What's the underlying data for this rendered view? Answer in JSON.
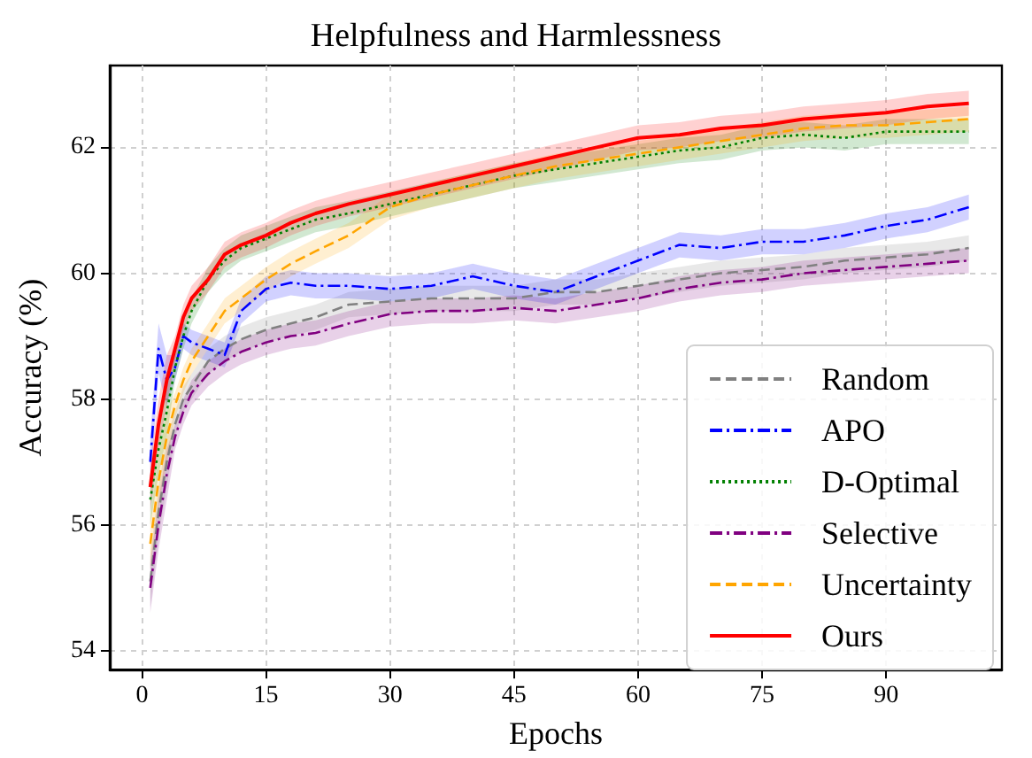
{
  "chart_data": {
    "type": "line",
    "title": "Helpfulness and Harmlessness",
    "xlabel": "Epochs",
    "ylabel": "Accuracy (%)",
    "x": [
      1,
      2,
      3,
      4,
      5,
      6,
      8,
      10,
      12,
      15,
      18,
      21,
      25,
      30,
      35,
      40,
      45,
      50,
      55,
      60,
      65,
      70,
      75,
      80,
      85,
      90,
      95,
      100
    ],
    "xlim": [
      -3.9,
      104
    ],
    "ylim": [
      53.7,
      63.3
    ],
    "xticks": [
      0,
      15,
      30,
      45,
      60,
      75,
      90
    ],
    "yticks": [
      54,
      56,
      58,
      60,
      62
    ],
    "grid": true,
    "legend": "bottom right",
    "marker": "none",
    "series": [
      {
        "name": "Random",
        "color": "#808080",
        "line_style": "dashed",
        "values": [
          55.1,
          56.2,
          57.0,
          57.6,
          58.0,
          58.2,
          58.6,
          58.8,
          58.95,
          59.1,
          59.2,
          59.3,
          59.5,
          59.55,
          59.6,
          59.6,
          59.6,
          59.7,
          59.7,
          59.8,
          59.9,
          60.0,
          60.05,
          60.1,
          60.2,
          60.25,
          60.3,
          60.4
        ],
        "lower": [
          54.7,
          55.8,
          56.6,
          57.4,
          57.8,
          58.0,
          58.4,
          58.6,
          58.75,
          58.9,
          59.0,
          59.1,
          59.3,
          59.35,
          59.4,
          59.4,
          59.4,
          59.5,
          59.5,
          59.6,
          59.7,
          59.8,
          59.85,
          59.9,
          60.0,
          60.05,
          60.1,
          60.2
        ],
        "upper": [
          55.5,
          56.6,
          57.4,
          57.8,
          58.2,
          58.4,
          58.8,
          59.0,
          59.15,
          59.3,
          59.4,
          59.5,
          59.7,
          59.75,
          59.8,
          59.8,
          59.8,
          59.9,
          59.9,
          60.0,
          60.1,
          60.2,
          60.25,
          60.3,
          60.4,
          60.45,
          60.5,
          60.6
        ]
      },
      {
        "name": "APO",
        "color": "#0000ff",
        "line_style": "dashdot",
        "values": [
          57.0,
          58.8,
          58.3,
          58.5,
          59.0,
          58.9,
          58.8,
          58.7,
          59.4,
          59.75,
          59.85,
          59.8,
          59.8,
          59.75,
          59.8,
          59.95,
          59.8,
          59.7,
          59.95,
          60.2,
          60.45,
          60.4,
          60.5,
          60.5,
          60.6,
          60.75,
          60.85,
          61.05
        ],
        "lower": [
          56.6,
          58.4,
          57.9,
          58.3,
          58.8,
          58.7,
          58.6,
          58.5,
          59.2,
          59.55,
          59.65,
          59.6,
          59.6,
          59.55,
          59.6,
          59.75,
          59.6,
          59.5,
          59.75,
          60.0,
          60.25,
          60.2,
          60.3,
          60.3,
          60.4,
          60.55,
          60.65,
          60.85
        ],
        "upper": [
          57.4,
          59.2,
          58.7,
          58.7,
          59.2,
          59.1,
          59.0,
          58.9,
          59.6,
          59.95,
          60.05,
          60.0,
          60.0,
          59.95,
          60.0,
          60.15,
          60.0,
          59.9,
          60.15,
          60.4,
          60.65,
          60.6,
          60.7,
          60.7,
          60.8,
          60.95,
          61.05,
          61.25
        ]
      },
      {
        "name": "D-Optimal",
        "color": "#008000",
        "line_style": "dotted",
        "values": [
          56.4,
          57.2,
          57.8,
          58.5,
          59.0,
          59.4,
          59.9,
          60.2,
          60.4,
          60.55,
          60.7,
          60.85,
          60.95,
          61.1,
          61.25,
          61.4,
          61.55,
          61.65,
          61.75,
          61.85,
          61.95,
          62.0,
          62.15,
          62.2,
          62.15,
          62.25,
          62.25,
          62.25
        ],
        "lower": [
          56.0,
          56.8,
          57.4,
          58.3,
          58.8,
          59.2,
          59.7,
          60.0,
          60.2,
          60.35,
          60.5,
          60.65,
          60.75,
          60.9,
          61.05,
          61.2,
          61.35,
          61.45,
          61.55,
          61.65,
          61.75,
          61.8,
          61.95,
          62.0,
          61.95,
          62.05,
          62.05,
          62.05
        ],
        "upper": [
          56.8,
          57.6,
          58.2,
          58.7,
          59.2,
          59.6,
          60.1,
          60.4,
          60.6,
          60.75,
          60.9,
          61.05,
          61.15,
          61.3,
          61.45,
          61.6,
          61.75,
          61.85,
          61.95,
          62.05,
          62.15,
          62.2,
          62.35,
          62.4,
          62.35,
          62.45,
          62.45,
          62.45
        ]
      },
      {
        "name": "Selective",
        "color": "#800080",
        "line_style": "dashdot",
        "values": [
          55.0,
          56.0,
          56.8,
          57.4,
          57.8,
          58.1,
          58.4,
          58.6,
          58.75,
          58.9,
          59.0,
          59.05,
          59.2,
          59.35,
          59.4,
          59.4,
          59.45,
          59.4,
          59.5,
          59.6,
          59.75,
          59.85,
          59.9,
          60.0,
          60.05,
          60.1,
          60.15,
          60.2
        ],
        "lower": [
          54.6,
          55.6,
          56.4,
          57.2,
          57.6,
          57.9,
          58.2,
          58.4,
          58.55,
          58.7,
          58.8,
          58.85,
          59.0,
          59.15,
          59.2,
          59.2,
          59.25,
          59.2,
          59.3,
          59.4,
          59.55,
          59.65,
          59.7,
          59.8,
          59.85,
          59.9,
          59.95,
          60.0
        ],
        "upper": [
          55.4,
          56.4,
          57.2,
          57.6,
          58.0,
          58.3,
          58.6,
          58.8,
          58.95,
          59.1,
          59.2,
          59.25,
          59.4,
          59.55,
          59.6,
          59.6,
          59.65,
          59.6,
          59.7,
          59.8,
          59.95,
          60.05,
          60.1,
          60.2,
          60.25,
          60.3,
          60.35,
          60.4
        ]
      },
      {
        "name": "Uncertainty",
        "color": "#ffa500",
        "line_style": "dashed",
        "values": [
          55.7,
          56.7,
          57.4,
          57.9,
          58.3,
          58.6,
          59.0,
          59.4,
          59.6,
          59.9,
          60.15,
          60.35,
          60.6,
          61.05,
          61.25,
          61.4,
          61.55,
          61.7,
          61.8,
          61.9,
          62.0,
          62.1,
          62.2,
          62.3,
          62.35,
          62.35,
          62.4,
          62.45
        ],
        "lower": [
          55.3,
          56.3,
          57.0,
          57.7,
          58.1,
          58.4,
          58.8,
          59.2,
          59.4,
          59.7,
          59.95,
          60.15,
          60.4,
          60.85,
          61.05,
          61.2,
          61.35,
          61.5,
          61.6,
          61.7,
          61.8,
          61.9,
          62.0,
          62.1,
          62.15,
          62.15,
          62.2,
          62.25
        ],
        "upper": [
          56.1,
          57.1,
          57.8,
          58.1,
          58.5,
          58.8,
          59.2,
          59.6,
          59.8,
          60.1,
          60.35,
          60.55,
          60.8,
          61.25,
          61.45,
          61.6,
          61.75,
          61.9,
          62.0,
          62.1,
          62.2,
          62.3,
          62.4,
          62.5,
          62.55,
          62.55,
          62.6,
          62.65
        ]
      },
      {
        "name": "Ours",
        "color": "#ff0000",
        "line_style": "solid",
        "values": [
          56.6,
          57.6,
          58.3,
          58.8,
          59.3,
          59.6,
          59.9,
          60.3,
          60.45,
          60.6,
          60.8,
          60.95,
          61.1,
          61.25,
          61.4,
          61.55,
          61.7,
          61.85,
          62.0,
          62.15,
          62.2,
          62.3,
          62.35,
          62.45,
          62.5,
          62.55,
          62.65,
          62.7
        ],
        "lower": [
          56.2,
          57.2,
          57.9,
          58.6,
          59.1,
          59.4,
          59.7,
          60.1,
          60.25,
          60.4,
          60.6,
          60.75,
          60.9,
          61.05,
          61.2,
          61.35,
          61.5,
          61.65,
          61.8,
          61.95,
          62.0,
          62.1,
          62.15,
          62.25,
          62.3,
          62.35,
          62.45,
          62.5
        ],
        "upper": [
          57.0,
          58.0,
          58.7,
          59.0,
          59.5,
          59.8,
          60.1,
          60.5,
          60.65,
          60.8,
          61.0,
          61.15,
          61.3,
          61.45,
          61.6,
          61.75,
          61.9,
          62.05,
          62.2,
          62.35,
          62.4,
          62.5,
          62.55,
          62.65,
          62.7,
          62.75,
          62.85,
          62.9
        ]
      }
    ]
  }
}
